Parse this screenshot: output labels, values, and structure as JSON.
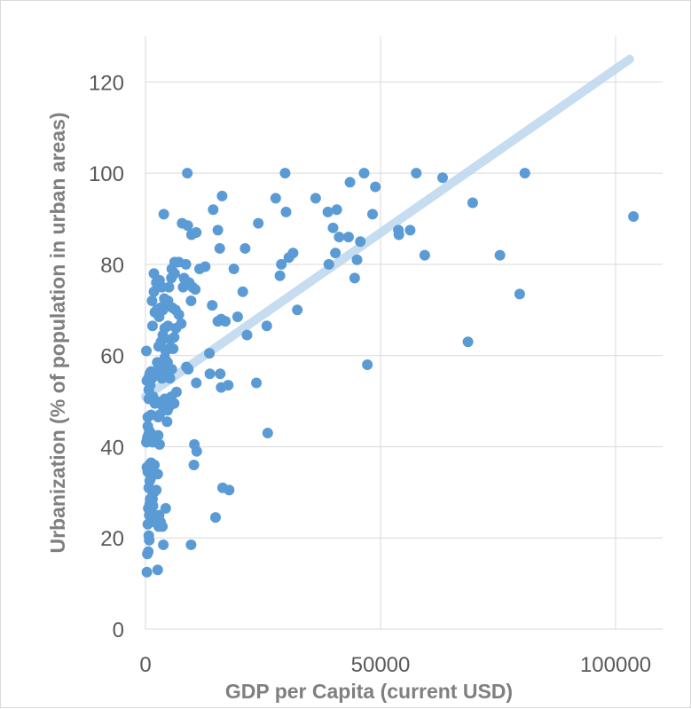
{
  "chart_data": {
    "type": "scatter",
    "title": "",
    "xlabel": "GDP per Capita (current USD)",
    "ylabel": "Urbanization (% of population in urban areas)",
    "xlim": [
      0,
      110000
    ],
    "ylim": [
      0,
      130
    ],
    "xticks": [
      0,
      50000,
      100000
    ],
    "yticks": [
      0,
      20,
      40,
      60,
      80,
      100,
      120
    ],
    "grid": true,
    "colors": {
      "points": "#5b9bd5",
      "trendline": "#bdd7ee",
      "grid": "#d9d9d9"
    },
    "trendline": {
      "type": "linear",
      "x": [
        0,
        103000
      ],
      "y": [
        51,
        125
      ]
    },
    "series": [
      {
        "points": [
          [
            300,
            12.5
          ],
          [
            400,
            16.5
          ],
          [
            600,
            17
          ],
          [
            800,
            19.5
          ],
          [
            700,
            20.5
          ],
          [
            500,
            23
          ],
          [
            800,
            25
          ],
          [
            600,
            26.5
          ],
          [
            900,
            27.5
          ],
          [
            1000,
            28.5
          ],
          [
            700,
            31
          ],
          [
            900,
            32.5
          ],
          [
            1100,
            33
          ],
          [
            500,
            34.5
          ],
          [
            300,
            35.5
          ],
          [
            800,
            36
          ],
          [
            1200,
            36.5
          ],
          [
            1500,
            35.5
          ],
          [
            1900,
            36
          ],
          [
            1800,
            30
          ],
          [
            1500,
            28.5
          ],
          [
            1600,
            27
          ],
          [
            1800,
            25
          ],
          [
            2000,
            23.5
          ],
          [
            2600,
            13
          ],
          [
            2800,
            22.5
          ],
          [
            2900,
            25
          ],
          [
            3200,
            23.5
          ],
          [
            3600,
            22.5
          ],
          [
            3800,
            18.5
          ],
          [
            4300,
            26.5
          ],
          [
            2600,
            34
          ],
          [
            1500,
            30
          ],
          [
            2300,
            30.5
          ],
          [
            200,
            41
          ],
          [
            400,
            42
          ],
          [
            600,
            42.5
          ],
          [
            800,
            43.5
          ],
          [
            500,
            44.5
          ],
          [
            1100,
            43
          ],
          [
            1400,
            42
          ],
          [
            1600,
            41
          ],
          [
            3000,
            40.5
          ],
          [
            2700,
            42.5
          ],
          [
            500,
            46.5
          ],
          [
            700,
            50.5
          ],
          [
            1200,
            47
          ],
          [
            1600,
            51
          ],
          [
            2000,
            49.5
          ],
          [
            2300,
            50
          ],
          [
            2700,
            46.5
          ],
          [
            3000,
            47
          ],
          [
            3600,
            49
          ],
          [
            4100,
            50.5
          ],
          [
            4600,
            45.5
          ],
          [
            4700,
            48
          ],
          [
            5200,
            49
          ],
          [
            6100,
            49.5
          ],
          [
            5500,
            51
          ],
          [
            6600,
            52
          ],
          [
            300,
            54.5
          ],
          [
            600,
            55
          ],
          [
            900,
            56
          ],
          [
            1200,
            56.5
          ],
          [
            700,
            52.5
          ],
          [
            1000,
            53.5
          ],
          [
            1400,
            55
          ],
          [
            1800,
            56
          ],
          [
            2200,
            56.5
          ],
          [
            2500,
            58.5
          ],
          [
            3000,
            57.5
          ],
          [
            3500,
            55
          ],
          [
            4000,
            56
          ],
          [
            4400,
            57.5
          ],
          [
            4700,
            58.5
          ],
          [
            5200,
            55
          ],
          [
            5600,
            57
          ],
          [
            4100,
            59.5
          ],
          [
            4300,
            61
          ],
          [
            5000,
            61.5
          ],
          [
            5900,
            61.5
          ],
          [
            2800,
            62
          ],
          [
            3300,
            63
          ],
          [
            3700,
            64.5
          ],
          [
            4100,
            66
          ],
          [
            4800,
            66.5
          ],
          [
            5300,
            63.5
          ],
          [
            6100,
            64
          ],
          [
            6500,
            66
          ],
          [
            1500,
            66.5
          ],
          [
            2000,
            69.5
          ],
          [
            2400,
            70
          ],
          [
            2900,
            68.5
          ],
          [
            3200,
            70.5
          ],
          [
            3700,
            70
          ],
          [
            4300,
            71
          ],
          [
            4800,
            72
          ],
          [
            5700,
            70.5
          ],
          [
            6400,
            70
          ],
          [
            7100,
            69
          ],
          [
            7600,
            67
          ],
          [
            1400,
            72
          ],
          [
            1800,
            74
          ],
          [
            2300,
            76
          ],
          [
            3000,
            76.5
          ],
          [
            3500,
            75
          ],
          [
            4000,
            72.5
          ],
          [
            5000,
            75
          ],
          [
            5500,
            77
          ],
          [
            6200,
            78
          ],
          [
            5600,
            79
          ],
          [
            6200,
            80.5
          ],
          [
            7100,
            80.5
          ],
          [
            8600,
            80
          ],
          [
            8200,
            77
          ],
          [
            8000,
            75
          ],
          [
            9300,
            76
          ],
          [
            10000,
            75
          ],
          [
            10600,
            74.5
          ],
          [
            9700,
            72
          ],
          [
            11500,
            79
          ],
          [
            12700,
            79.5
          ],
          [
            1800,
            78
          ],
          [
            200,
            61
          ],
          [
            7800,
            89
          ],
          [
            9000,
            88.5
          ],
          [
            9800,
            86.5
          ],
          [
            10800,
            87
          ],
          [
            3900,
            91
          ],
          [
            8900,
            100
          ],
          [
            8700,
            57.5
          ],
          [
            9100,
            57
          ],
          [
            10800,
            54
          ],
          [
            13700,
            56
          ],
          [
            13600,
            60.5
          ],
          [
            14200,
            71
          ],
          [
            15400,
            67.5
          ],
          [
            16100,
            68
          ],
          [
            17000,
            67.5
          ],
          [
            15900,
            56
          ],
          [
            16100,
            53
          ],
          [
            17600,
            53.5
          ],
          [
            10400,
            40.5
          ],
          [
            10900,
            39
          ],
          [
            10300,
            36
          ],
          [
            9700,
            18.5
          ],
          [
            16400,
            31
          ],
          [
            17800,
            30.5
          ],
          [
            14900,
            24.5
          ],
          [
            14400,
            92
          ],
          [
            15400,
            87.5
          ],
          [
            15800,
            83.5
          ],
          [
            16300,
            95
          ],
          [
            18800,
            79
          ],
          [
            19600,
            68.5
          ],
          [
            20700,
            74
          ],
          [
            21200,
            83.5
          ],
          [
            21600,
            64.5
          ],
          [
            24000,
            89
          ],
          [
            23600,
            54
          ],
          [
            25800,
            66.5
          ],
          [
            26000,
            43
          ],
          [
            27700,
            94.5
          ],
          [
            28600,
            77.5
          ],
          [
            28900,
            80
          ],
          [
            29900,
            91.5
          ],
          [
            29700,
            100
          ],
          [
            30500,
            81.5
          ],
          [
            31400,
            82.5
          ],
          [
            32300,
            70
          ],
          [
            36200,
            94.5
          ],
          [
            38800,
            91.5
          ],
          [
            39000,
            80
          ],
          [
            39900,
            88
          ],
          [
            40700,
            92
          ],
          [
            41200,
            86
          ],
          [
            40400,
            82.5
          ],
          [
            43200,
            86
          ],
          [
            43500,
            98
          ],
          [
            44500,
            77
          ],
          [
            45000,
            81
          ],
          [
            45700,
            85
          ],
          [
            46500,
            100
          ],
          [
            48300,
            91
          ],
          [
            48900,
            97
          ],
          [
            47200,
            58
          ],
          [
            53900,
            86.5
          ],
          [
            53800,
            87.5
          ],
          [
            56300,
            87.5
          ],
          [
            57600,
            100
          ],
          [
            59400,
            82
          ],
          [
            63200,
            99
          ],
          [
            68600,
            63
          ],
          [
            69600,
            93.5
          ],
          [
            75400,
            82
          ],
          [
            79600,
            73.5
          ],
          [
            80700,
            100
          ],
          [
            103800,
            90.5
          ]
        ]
      }
    ]
  }
}
